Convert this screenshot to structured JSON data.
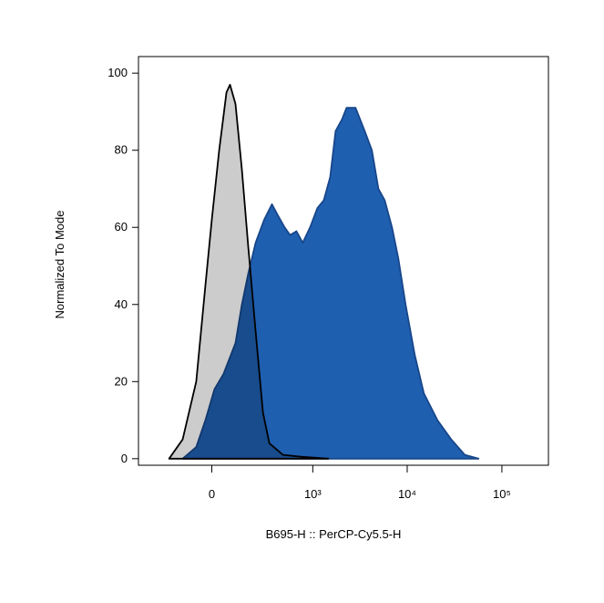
{
  "chart_data": {
    "type": "area",
    "x_label": "B695-H :: PerCP-Cy5.5-H",
    "y_label": "Normalized To Mode",
    "x_scale": "biexponential",
    "xlim": [
      -500,
      310000
    ],
    "ylim": [
      -1.7,
      104.3
    ],
    "xticks": [
      0,
      {
        "value": 1000,
        "label": "10³"
      },
      {
        "value": 10000,
        "label": "10⁴"
      },
      {
        "value": 100000,
        "label": "10⁵"
      }
    ],
    "yticks": [
      0,
      20,
      40,
      60,
      80,
      100
    ],
    "series": [
      {
        "color": "#1f5fb0",
        "line_color": "#17468a",
        "fill_opacity": 1,
        "x": [
          -133,
          -67,
          -27,
          11,
          50,
          105,
          138,
          174,
          221,
          285,
          353,
          417,
          493,
          567,
          666,
          780,
          936,
          1119,
          1310,
          1531,
          1751,
          2045,
          2284,
          2851,
          3557,
          4238,
          4965,
          5796,
          6913,
          8062,
          9619,
          12006,
          14982,
          20898,
          29150,
          40603,
          56675
        ],
        "values": [
          0,
          3,
          10,
          18,
          22,
          30,
          40,
          48,
          56,
          62,
          66,
          63,
          60,
          58,
          59,
          56,
          60,
          65,
          67,
          73,
          85,
          88,
          91,
          91,
          85,
          80,
          70,
          67,
          60,
          52,
          40,
          27,
          17,
          10,
          5,
          1,
          0
        ]
      },
      {
        "color": "#000000",
        "line_color": "#000000",
        "fill_opacity": 0.2,
        "x": [
          -214,
          -133,
          -67,
          -27,
          0,
          31,
          63,
          79,
          105,
          138,
          174,
          221,
          275,
          329,
          471,
          747,
          1465
        ],
        "values": [
          0,
          5,
          20,
          45,
          62,
          80,
          95,
          97,
          92,
          75,
          55,
          33,
          12,
          4,
          1,
          0.5,
          0
        ]
      }
    ]
  }
}
